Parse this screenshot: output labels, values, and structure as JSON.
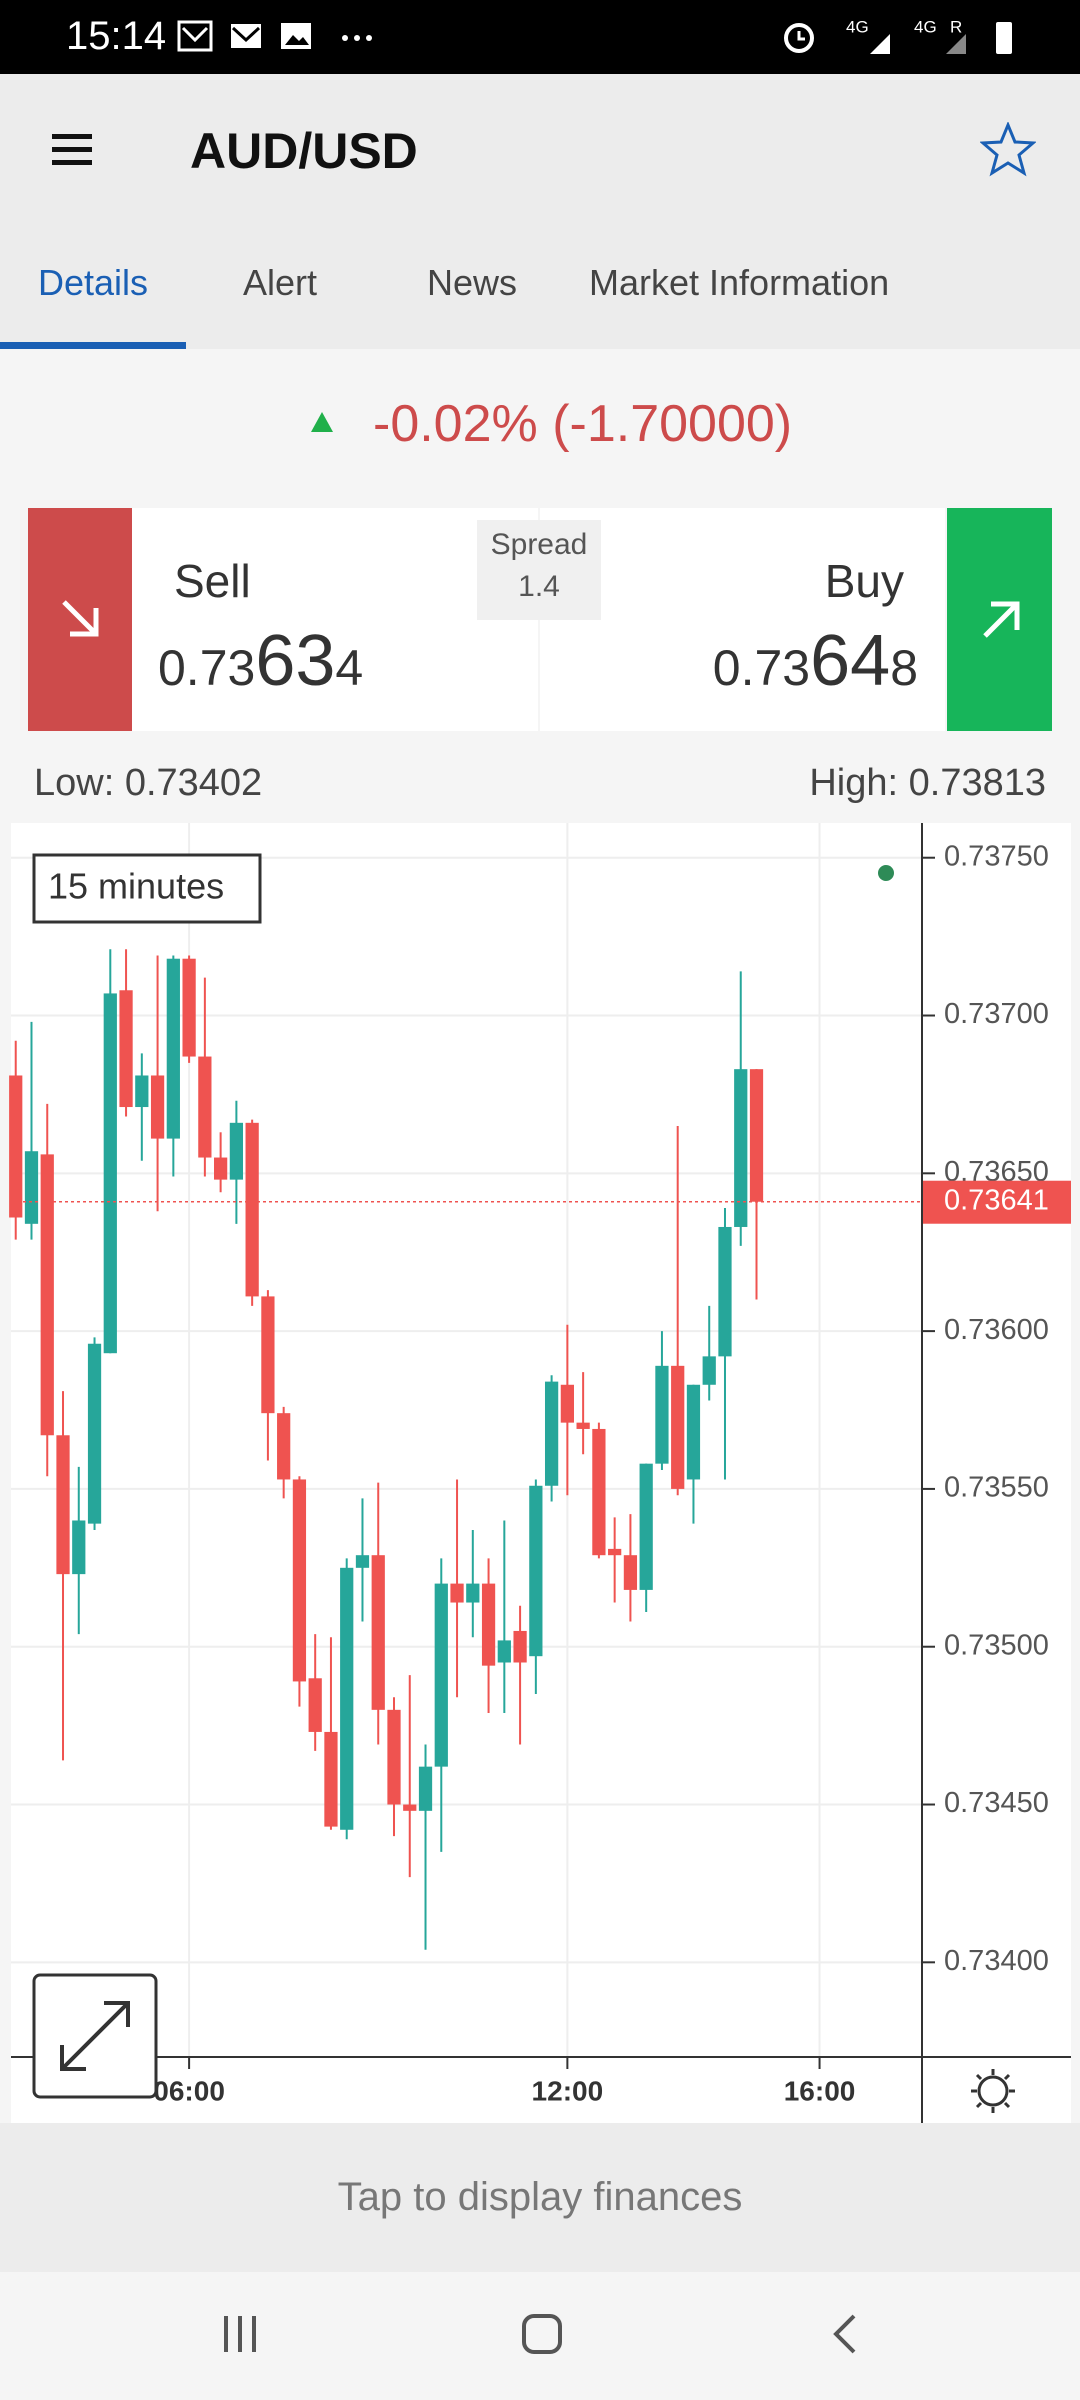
{
  "status_bar": {
    "time": "15:14",
    "network_1": "4G",
    "network_2": "4G",
    "roaming": "R"
  },
  "header": {
    "title": "AUD/USD"
  },
  "tabs": [
    "Details",
    "Alert",
    "News",
    "Market Information"
  ],
  "active_tab": 0,
  "change": "-0.02% (-1.70000)",
  "sell": {
    "label": "Sell",
    "price_prefix": "0.73",
    "price_big": "63",
    "price_suffix": "4"
  },
  "spread": {
    "label": "Spread",
    "value": 1.4
  },
  "buy": {
    "label": "Buy",
    "price_prefix": "0.73",
    "price_big": "64",
    "price_suffix": "8"
  },
  "low": "Low: 0.73402",
  "high": "High: 0.73813",
  "chart": {
    "type": "candlestick",
    "interval_label": "15 minutes",
    "up_color": "#26a69a",
    "down_color": "#ef5350",
    "ylim": [
      0.7337,
      0.73761
    ],
    "yticks": [
      {
        "value": 0.7375,
        "label": "0.73750"
      },
      {
        "value": 0.737,
        "label": "0.73700"
      },
      {
        "value": 0.7365,
        "label": "0.73650"
      },
      {
        "value": 0.736,
        "label": "0.73600"
      },
      {
        "value": 0.7355,
        "label": "0.73550"
      },
      {
        "value": 0.735,
        "label": "0.73500"
      },
      {
        "value": 0.7345,
        "label": "0.73450"
      },
      {
        "value": 0.734,
        "label": "0.73400"
      }
    ],
    "xlim": [
      -0.3,
      57.5
    ],
    "xticks": [
      {
        "value": 11,
        "label": "06:00"
      },
      {
        "value": 35,
        "label": "12:00"
      },
      {
        "value": 51,
        "label": "16:00"
      }
    ],
    "current_price": {
      "value": 0.73641,
      "label": "0.73641"
    },
    "candles": [
      [
        0.73681,
        0.73692,
        0.73629,
        0.73636
      ],
      [
        0.73634,
        0.73698,
        0.73629,
        0.73657
      ],
      [
        0.73656,
        0.73672,
        0.73554,
        0.73567
      ],
      [
        0.73567,
        0.73581,
        0.73464,
        0.73523
      ],
      [
        0.73523,
        0.73557,
        0.73504,
        0.7354
      ],
      [
        0.73539,
        0.73598,
        0.73537,
        0.73596
      ],
      [
        0.73593,
        0.73721,
        0.73593,
        0.73707
      ],
      [
        0.73708,
        0.73721,
        0.73668,
        0.73671
      ],
      [
        0.73671,
        0.73688,
        0.73654,
        0.73681
      ],
      [
        0.73681,
        0.73719,
        0.73638,
        0.73661
      ],
      [
        0.73661,
        0.73719,
        0.73649,
        0.73718
      ],
      [
        0.73718,
        0.73719,
        0.73685,
        0.73687
      ],
      [
        0.73687,
        0.73712,
        0.73649,
        0.73655
      ],
      [
        0.73655,
        0.73663,
        0.73644,
        0.73648
      ],
      [
        0.73648,
        0.73673,
        0.73634,
        0.73666
      ],
      [
        0.73666,
        0.73667,
        0.73608,
        0.73611
      ],
      [
        0.73611,
        0.73613,
        0.73559,
        0.73574
      ],
      [
        0.73574,
        0.73576,
        0.73547,
        0.73553
      ],
      [
        0.73553,
        0.73554,
        0.73481,
        0.73489
      ],
      [
        0.7349,
        0.73504,
        0.73467,
        0.73473
      ],
      [
        0.73473,
        0.73503,
        0.73442,
        0.73443
      ],
      [
        0.73442,
        0.73528,
        0.73439,
        0.73525
      ],
      [
        0.73525,
        0.73547,
        0.73508,
        0.73529
      ],
      [
        0.73529,
        0.73552,
        0.73469,
        0.7348
      ],
      [
        0.7348,
        0.73484,
        0.7344,
        0.7345
      ],
      [
        0.7345,
        0.73491,
        0.73427,
        0.73448
      ],
      [
        0.73448,
        0.73469,
        0.73404,
        0.73462
      ],
      [
        0.73462,
        0.73528,
        0.73435,
        0.7352
      ],
      [
        0.7352,
        0.73553,
        0.73484,
        0.73514
      ],
      [
        0.73514,
        0.73537,
        0.73503,
        0.7352
      ],
      [
        0.7352,
        0.73528,
        0.73479,
        0.73494
      ],
      [
        0.73495,
        0.7354,
        0.73479,
        0.73502
      ],
      [
        0.73505,
        0.73513,
        0.73469,
        0.73495
      ],
      [
        0.73497,
        0.73553,
        0.73485,
        0.73551
      ],
      [
        0.73551,
        0.73586,
        0.73546,
        0.73584
      ],
      [
        0.73583,
        0.73602,
        0.73548,
        0.73571
      ],
      [
        0.73571,
        0.73587,
        0.73561,
        0.73569
      ],
      [
        0.73569,
        0.73571,
        0.73528,
        0.73529
      ],
      [
        0.73531,
        0.73541,
        0.73514,
        0.73529
      ],
      [
        0.73529,
        0.73542,
        0.73508,
        0.73518
      ],
      [
        0.73518,
        0.73558,
        0.73511,
        0.73558
      ],
      [
        0.73558,
        0.736,
        0.73556,
        0.73589
      ],
      [
        0.73589,
        0.73665,
        0.73548,
        0.7355
      ],
      [
        0.73553,
        0.73583,
        0.73539,
        0.73583
      ],
      [
        0.73583,
        0.73608,
        0.73578,
        0.73592
      ],
      [
        0.73592,
        0.73639,
        0.73553,
        0.73633
      ],
      [
        0.73633,
        0.73714,
        0.73627,
        0.73683
      ],
      [
        0.73683,
        0.73683,
        0.7361,
        0.73641
      ]
    ]
  },
  "footer": "Tap to display finances"
}
